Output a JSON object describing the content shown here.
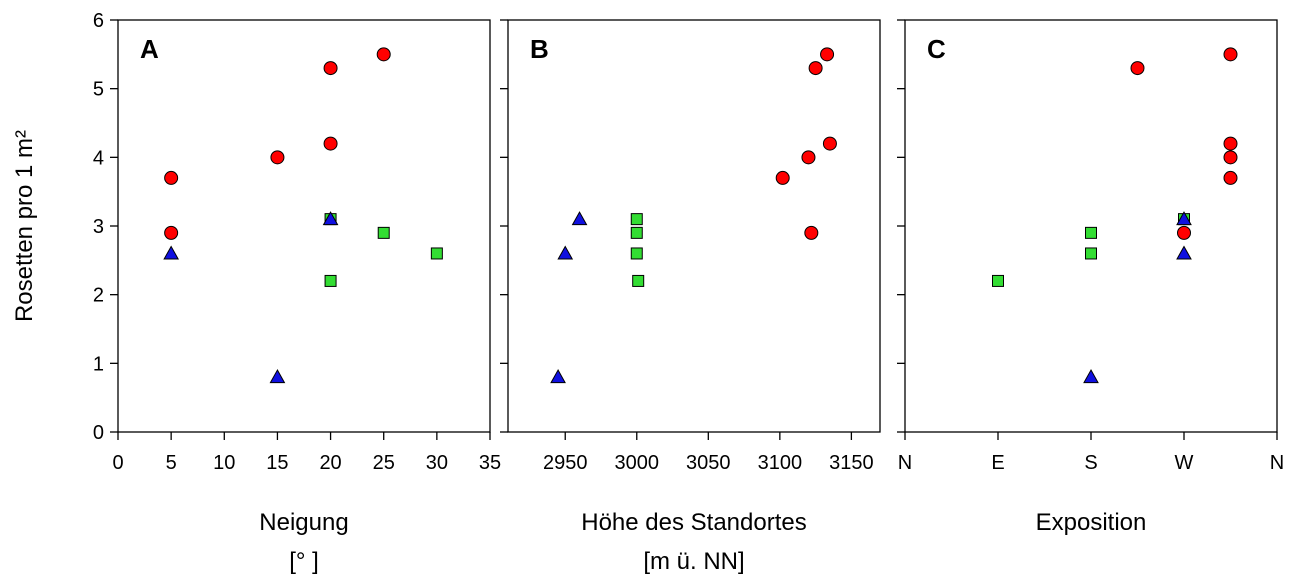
{
  "chart_data": {
    "type": "scatter",
    "ylabel": "Rosetten pro 1 m²",
    "ylim": [
      0,
      6
    ],
    "yticks": [
      "0",
      "1",
      "2",
      "3",
      "4",
      "5",
      "6"
    ],
    "marker_colors": {
      "circle": "#ff0000",
      "square": "#33dd33",
      "triangle": "#1010e0"
    },
    "panels": [
      {
        "letter": "A",
        "xlabel": "Neigung",
        "xunit": "[° ]",
        "xlim": [
          0,
          35
        ],
        "xticks": [
          {
            "v": 0,
            "label": "0"
          },
          {
            "v": 5,
            "label": "5"
          },
          {
            "v": 10,
            "label": "10"
          },
          {
            "v": 15,
            "label": "15"
          },
          {
            "v": 20,
            "label": "20"
          },
          {
            "v": 25,
            "label": "25"
          },
          {
            "v": 30,
            "label": "30"
          },
          {
            "v": 35,
            "label": "35"
          }
        ],
        "series": [
          {
            "marker": "circle",
            "points": [
              [
                5,
                3.7
              ],
              [
                5,
                2.9
              ],
              [
                15,
                4.0
              ],
              [
                20,
                5.3
              ],
              [
                20,
                4.2
              ],
              [
                25,
                5.5
              ]
            ]
          },
          {
            "marker": "square",
            "points": [
              [
                20,
                3.1
              ],
              [
                20,
                2.2
              ],
              [
                25,
                2.9
              ],
              [
                30,
                2.6
              ]
            ]
          },
          {
            "marker": "triangle",
            "points": [
              [
                5,
                2.6
              ],
              [
                15,
                0.8
              ],
              [
                20,
                3.1
              ]
            ]
          }
        ]
      },
      {
        "letter": "B",
        "xlabel": "Höhe des Standortes",
        "xunit": "[m ü. NN]",
        "xlim": [
          2910,
          3170
        ],
        "xticks": [
          {
            "v": 2950,
            "label": "2950"
          },
          {
            "v": 3000,
            "label": "3000"
          },
          {
            "v": 3050,
            "label": "3050"
          },
          {
            "v": 3100,
            "label": "3100"
          },
          {
            "v": 3150,
            "label": "3150"
          }
        ],
        "series": [
          {
            "marker": "circle",
            "points": [
              [
                3102,
                3.7
              ],
              [
                3120,
                4.0
              ],
              [
                3122,
                2.9
              ],
              [
                3125,
                5.3
              ],
              [
                3133,
                5.5
              ],
              [
                3135,
                4.2
              ]
            ]
          },
          {
            "marker": "square",
            "points": [
              [
                3000,
                3.1
              ],
              [
                3000,
                2.9
              ],
              [
                3000,
                2.6
              ],
              [
                3001,
                2.2
              ]
            ]
          },
          {
            "marker": "triangle",
            "points": [
              [
                2945,
                0.8
              ],
              [
                2950,
                2.6
              ],
              [
                2960,
                3.1
              ]
            ]
          }
        ]
      },
      {
        "letter": "C",
        "xlabel": "Exposition",
        "xunit": "",
        "xlim": [
          0,
          4
        ],
        "xticks": [
          {
            "v": 0,
            "label": "N"
          },
          {
            "v": 1,
            "label": "E"
          },
          {
            "v": 2,
            "label": "S"
          },
          {
            "v": 3,
            "label": "W"
          },
          {
            "v": 4,
            "label": "N"
          }
        ],
        "series": [
          {
            "marker": "circle",
            "points": [
              [
                2.5,
                5.3
              ],
              [
                3.0,
                2.9
              ],
              [
                3.5,
                5.5
              ],
              [
                3.5,
                4.2
              ],
              [
                3.5,
                4.0
              ],
              [
                3.5,
                3.7
              ]
            ]
          },
          {
            "marker": "square",
            "points": [
              [
                1,
                2.2
              ],
              [
                2,
                2.9
              ],
              [
                2,
                2.6
              ],
              [
                3,
                3.1
              ]
            ]
          },
          {
            "marker": "triangle",
            "points": [
              [
                2,
                0.8
              ],
              [
                3,
                2.6
              ],
              [
                3,
                3.1
              ]
            ]
          }
        ]
      }
    ]
  }
}
